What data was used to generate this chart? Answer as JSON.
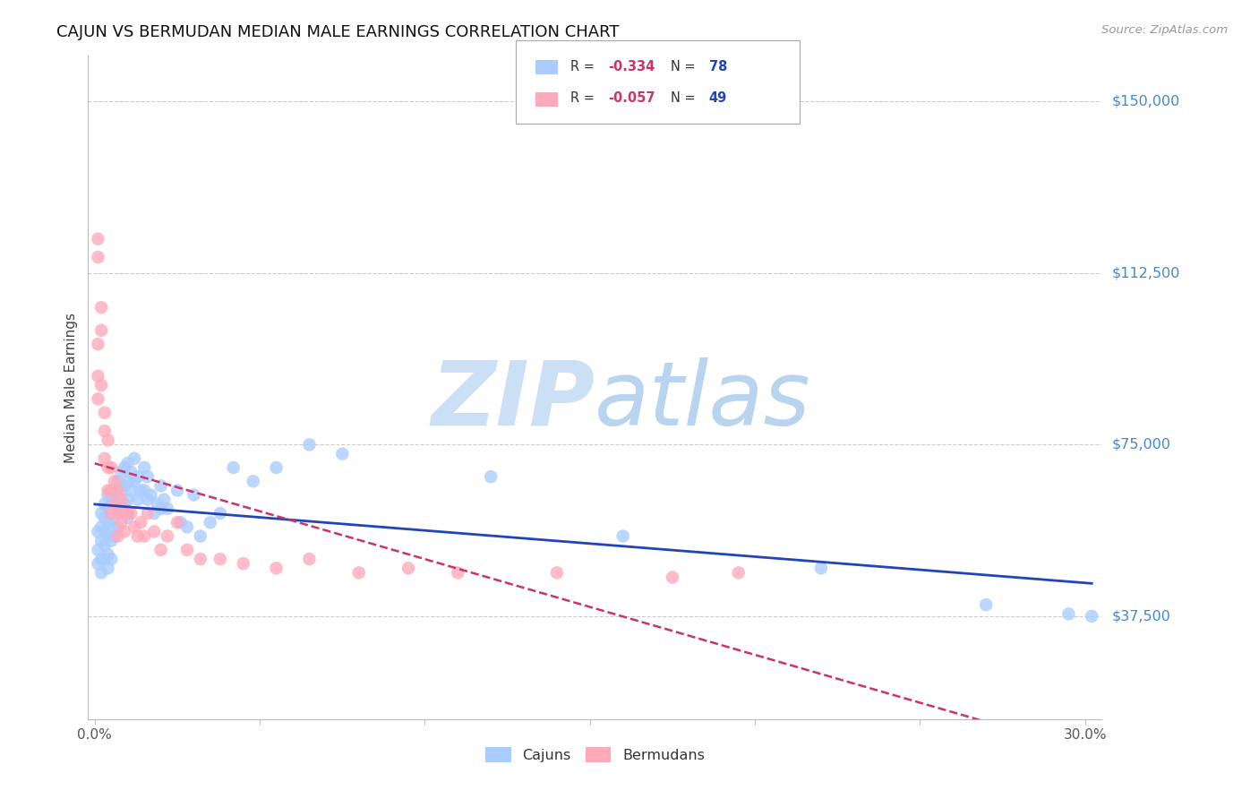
{
  "title": "CAJUN VS BERMUDAN MEDIAN MALE EARNINGS CORRELATION CHART",
  "source": "Source: ZipAtlas.com",
  "ylabel": "Median Male Earnings",
  "ytick_labels": [
    "$37,500",
    "$75,000",
    "$112,500",
    "$150,000"
  ],
  "ytick_values": [
    37500,
    75000,
    112500,
    150000
  ],
  "ymin": 15000,
  "ymax": 160000,
  "xmin": -0.002,
  "xmax": 0.305,
  "cajun_color": "#aaccff",
  "bermudan_color": "#ffaabb",
  "line_cajun_color": "#2244bb",
  "line_bermudan_color": "#cc3366",
  "watermark_color": "#cce0f5",
  "cajun_x": [
    0.001,
    0.001,
    0.001,
    0.002,
    0.002,
    0.002,
    0.002,
    0.002,
    0.003,
    0.003,
    0.003,
    0.003,
    0.003,
    0.004,
    0.004,
    0.004,
    0.004,
    0.004,
    0.004,
    0.005,
    0.005,
    0.005,
    0.005,
    0.005,
    0.006,
    0.006,
    0.006,
    0.006,
    0.007,
    0.007,
    0.007,
    0.007,
    0.008,
    0.008,
    0.008,
    0.009,
    0.009,
    0.009,
    0.01,
    0.01,
    0.01,
    0.01,
    0.011,
    0.011,
    0.012,
    0.012,
    0.013,
    0.013,
    0.014,
    0.015,
    0.015,
    0.016,
    0.016,
    0.017,
    0.018,
    0.019,
    0.02,
    0.02,
    0.021,
    0.022,
    0.025,
    0.026,
    0.028,
    0.03,
    0.032,
    0.035,
    0.038,
    0.042,
    0.048,
    0.055,
    0.065,
    0.075,
    0.12,
    0.16,
    0.22,
    0.27,
    0.295,
    0.302
  ],
  "cajun_y": [
    56000,
    52000,
    49000,
    60000,
    57000,
    54000,
    50000,
    47000,
    62000,
    59000,
    56000,
    53000,
    50000,
    64000,
    61000,
    58000,
    55000,
    51000,
    48000,
    63000,
    60000,
    57000,
    54000,
    50000,
    65000,
    62000,
    59000,
    55000,
    67000,
    64000,
    60000,
    57000,
    69000,
    65000,
    61000,
    70000,
    66000,
    62000,
    71000,
    67000,
    63000,
    59000,
    69000,
    65000,
    72000,
    67000,
    68000,
    63000,
    65000,
    70000,
    65000,
    68000,
    63000,
    64000,
    60000,
    62000,
    66000,
    61000,
    63000,
    61000,
    65000,
    58000,
    57000,
    64000,
    55000,
    58000,
    60000,
    70000,
    67000,
    70000,
    75000,
    73000,
    68000,
    55000,
    48000,
    40000,
    38000,
    37500
  ],
  "bermudan_x": [
    0.001,
    0.001,
    0.001,
    0.001,
    0.001,
    0.002,
    0.002,
    0.002,
    0.003,
    0.003,
    0.003,
    0.004,
    0.004,
    0.004,
    0.005,
    0.005,
    0.005,
    0.006,
    0.006,
    0.007,
    0.007,
    0.007,
    0.008,
    0.008,
    0.009,
    0.009,
    0.01,
    0.011,
    0.012,
    0.013,
    0.014,
    0.015,
    0.016,
    0.018,
    0.02,
    0.022,
    0.025,
    0.028,
    0.032,
    0.038,
    0.045,
    0.055,
    0.065,
    0.08,
    0.095,
    0.11,
    0.14,
    0.175,
    0.195
  ],
  "bermudan_y": [
    120000,
    116000,
    97000,
    90000,
    85000,
    105000,
    100000,
    88000,
    82000,
    78000,
    72000,
    76000,
    70000,
    65000,
    70000,
    65000,
    60000,
    67000,
    62000,
    65000,
    60000,
    55000,
    63000,
    58000,
    61000,
    56000,
    60000,
    60000,
    57000,
    55000,
    58000,
    55000,
    60000,
    56000,
    52000,
    55000,
    58000,
    52000,
    50000,
    50000,
    49000,
    48000,
    50000,
    47000,
    48000,
    47000,
    47000,
    46000,
    47000
  ]
}
